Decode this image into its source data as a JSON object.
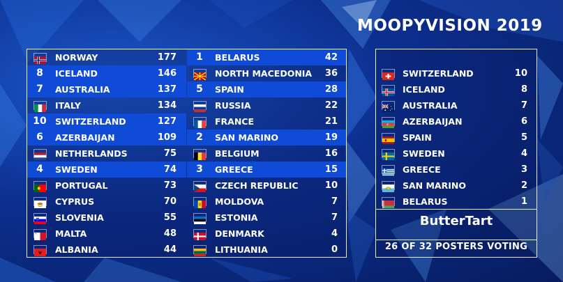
{
  "title": "MOOPYVISION 2019",
  "scoreboard": {
    "left": [
      {
        "pts": "",
        "name": "NORWAY",
        "score": "177",
        "flag": "norway"
      },
      {
        "pts": "8",
        "name": "ICELAND",
        "score": "146",
        "flag": "iceland"
      },
      {
        "pts": "7",
        "name": "AUSTRALIA",
        "score": "137",
        "flag": "australia"
      },
      {
        "pts": "",
        "name": "ITALY",
        "score": "134",
        "flag": "italy"
      },
      {
        "pts": "10",
        "name": "SWITZERLAND",
        "score": "127",
        "flag": "switzerland"
      },
      {
        "pts": "6",
        "name": "AZERBAIJAN",
        "score": "109",
        "flag": "azerbaijan"
      },
      {
        "pts": "",
        "name": "NETHERLANDS",
        "score": "75",
        "flag": "netherlands"
      },
      {
        "pts": "4",
        "name": "SWEDEN",
        "score": "74",
        "flag": "sweden"
      },
      {
        "pts": "",
        "name": "PORTUGAL",
        "score": "73",
        "flag": "portugal"
      },
      {
        "pts": "",
        "name": "CYPRUS",
        "score": "70",
        "flag": "cyprus"
      },
      {
        "pts": "",
        "name": "SLOVENIA",
        "score": "55",
        "flag": "slovenia"
      },
      {
        "pts": "",
        "name": "MALTA",
        "score": "48",
        "flag": "malta"
      },
      {
        "pts": "",
        "name": "ALBANIA",
        "score": "44",
        "flag": "albania"
      }
    ],
    "right": [
      {
        "pts": "1",
        "name": "BELARUS",
        "score": "42",
        "flag": "belarus"
      },
      {
        "pts": "",
        "name": "NORTH MACEDONIA",
        "score": "36",
        "flag": "north-macedonia"
      },
      {
        "pts": "5",
        "name": "SPAIN",
        "score": "28",
        "flag": "spain"
      },
      {
        "pts": "",
        "name": "RUSSIA",
        "score": "22",
        "flag": "russia"
      },
      {
        "pts": "",
        "name": "FRANCE",
        "score": "21",
        "flag": "france"
      },
      {
        "pts": "2",
        "name": "SAN MARINO",
        "score": "19",
        "flag": "san-marino"
      },
      {
        "pts": "",
        "name": "BELGIUM",
        "score": "16",
        "flag": "belgium"
      },
      {
        "pts": "3",
        "name": "GREECE",
        "score": "15",
        "flag": "greece"
      },
      {
        "pts": "",
        "name": "CZECH REPUBLIC",
        "score": "10",
        "flag": "czech-republic"
      },
      {
        "pts": "",
        "name": "MOLDOVA",
        "score": "7",
        "flag": "moldova"
      },
      {
        "pts": "",
        "name": "ESTONIA",
        "score": "7",
        "flag": "estonia"
      },
      {
        "pts": "",
        "name": "DENMARK",
        "score": "4",
        "flag": "denmark"
      },
      {
        "pts": "",
        "name": "LITHUANIA",
        "score": "0",
        "flag": "lithuania"
      }
    ]
  },
  "votes_panel": {
    "rows": [
      {
        "name": "SWITZERLAND",
        "score": "10",
        "flag": "switzerland"
      },
      {
        "name": "ICELAND",
        "score": "8",
        "flag": "iceland"
      },
      {
        "name": "AUSTRALIA",
        "score": "7",
        "flag": "australia"
      },
      {
        "name": "AZERBAIJAN",
        "score": "6",
        "flag": "azerbaijan"
      },
      {
        "name": "SPAIN",
        "score": "5",
        "flag": "spain"
      },
      {
        "name": "SWEDEN",
        "score": "4",
        "flag": "sweden"
      },
      {
        "name": "GREECE",
        "score": "3",
        "flag": "greece"
      },
      {
        "name": "SAN MARINO",
        "score": "2",
        "flag": "san-marino"
      },
      {
        "name": "BELARUS",
        "score": "1",
        "flag": "belarus"
      }
    ],
    "voter": "ButterTart",
    "voting_status": "26 OF 32 POSTERS VOTING"
  },
  "colors": {
    "highlight": "#0f4bd6",
    "background": "#0c2f8f"
  }
}
